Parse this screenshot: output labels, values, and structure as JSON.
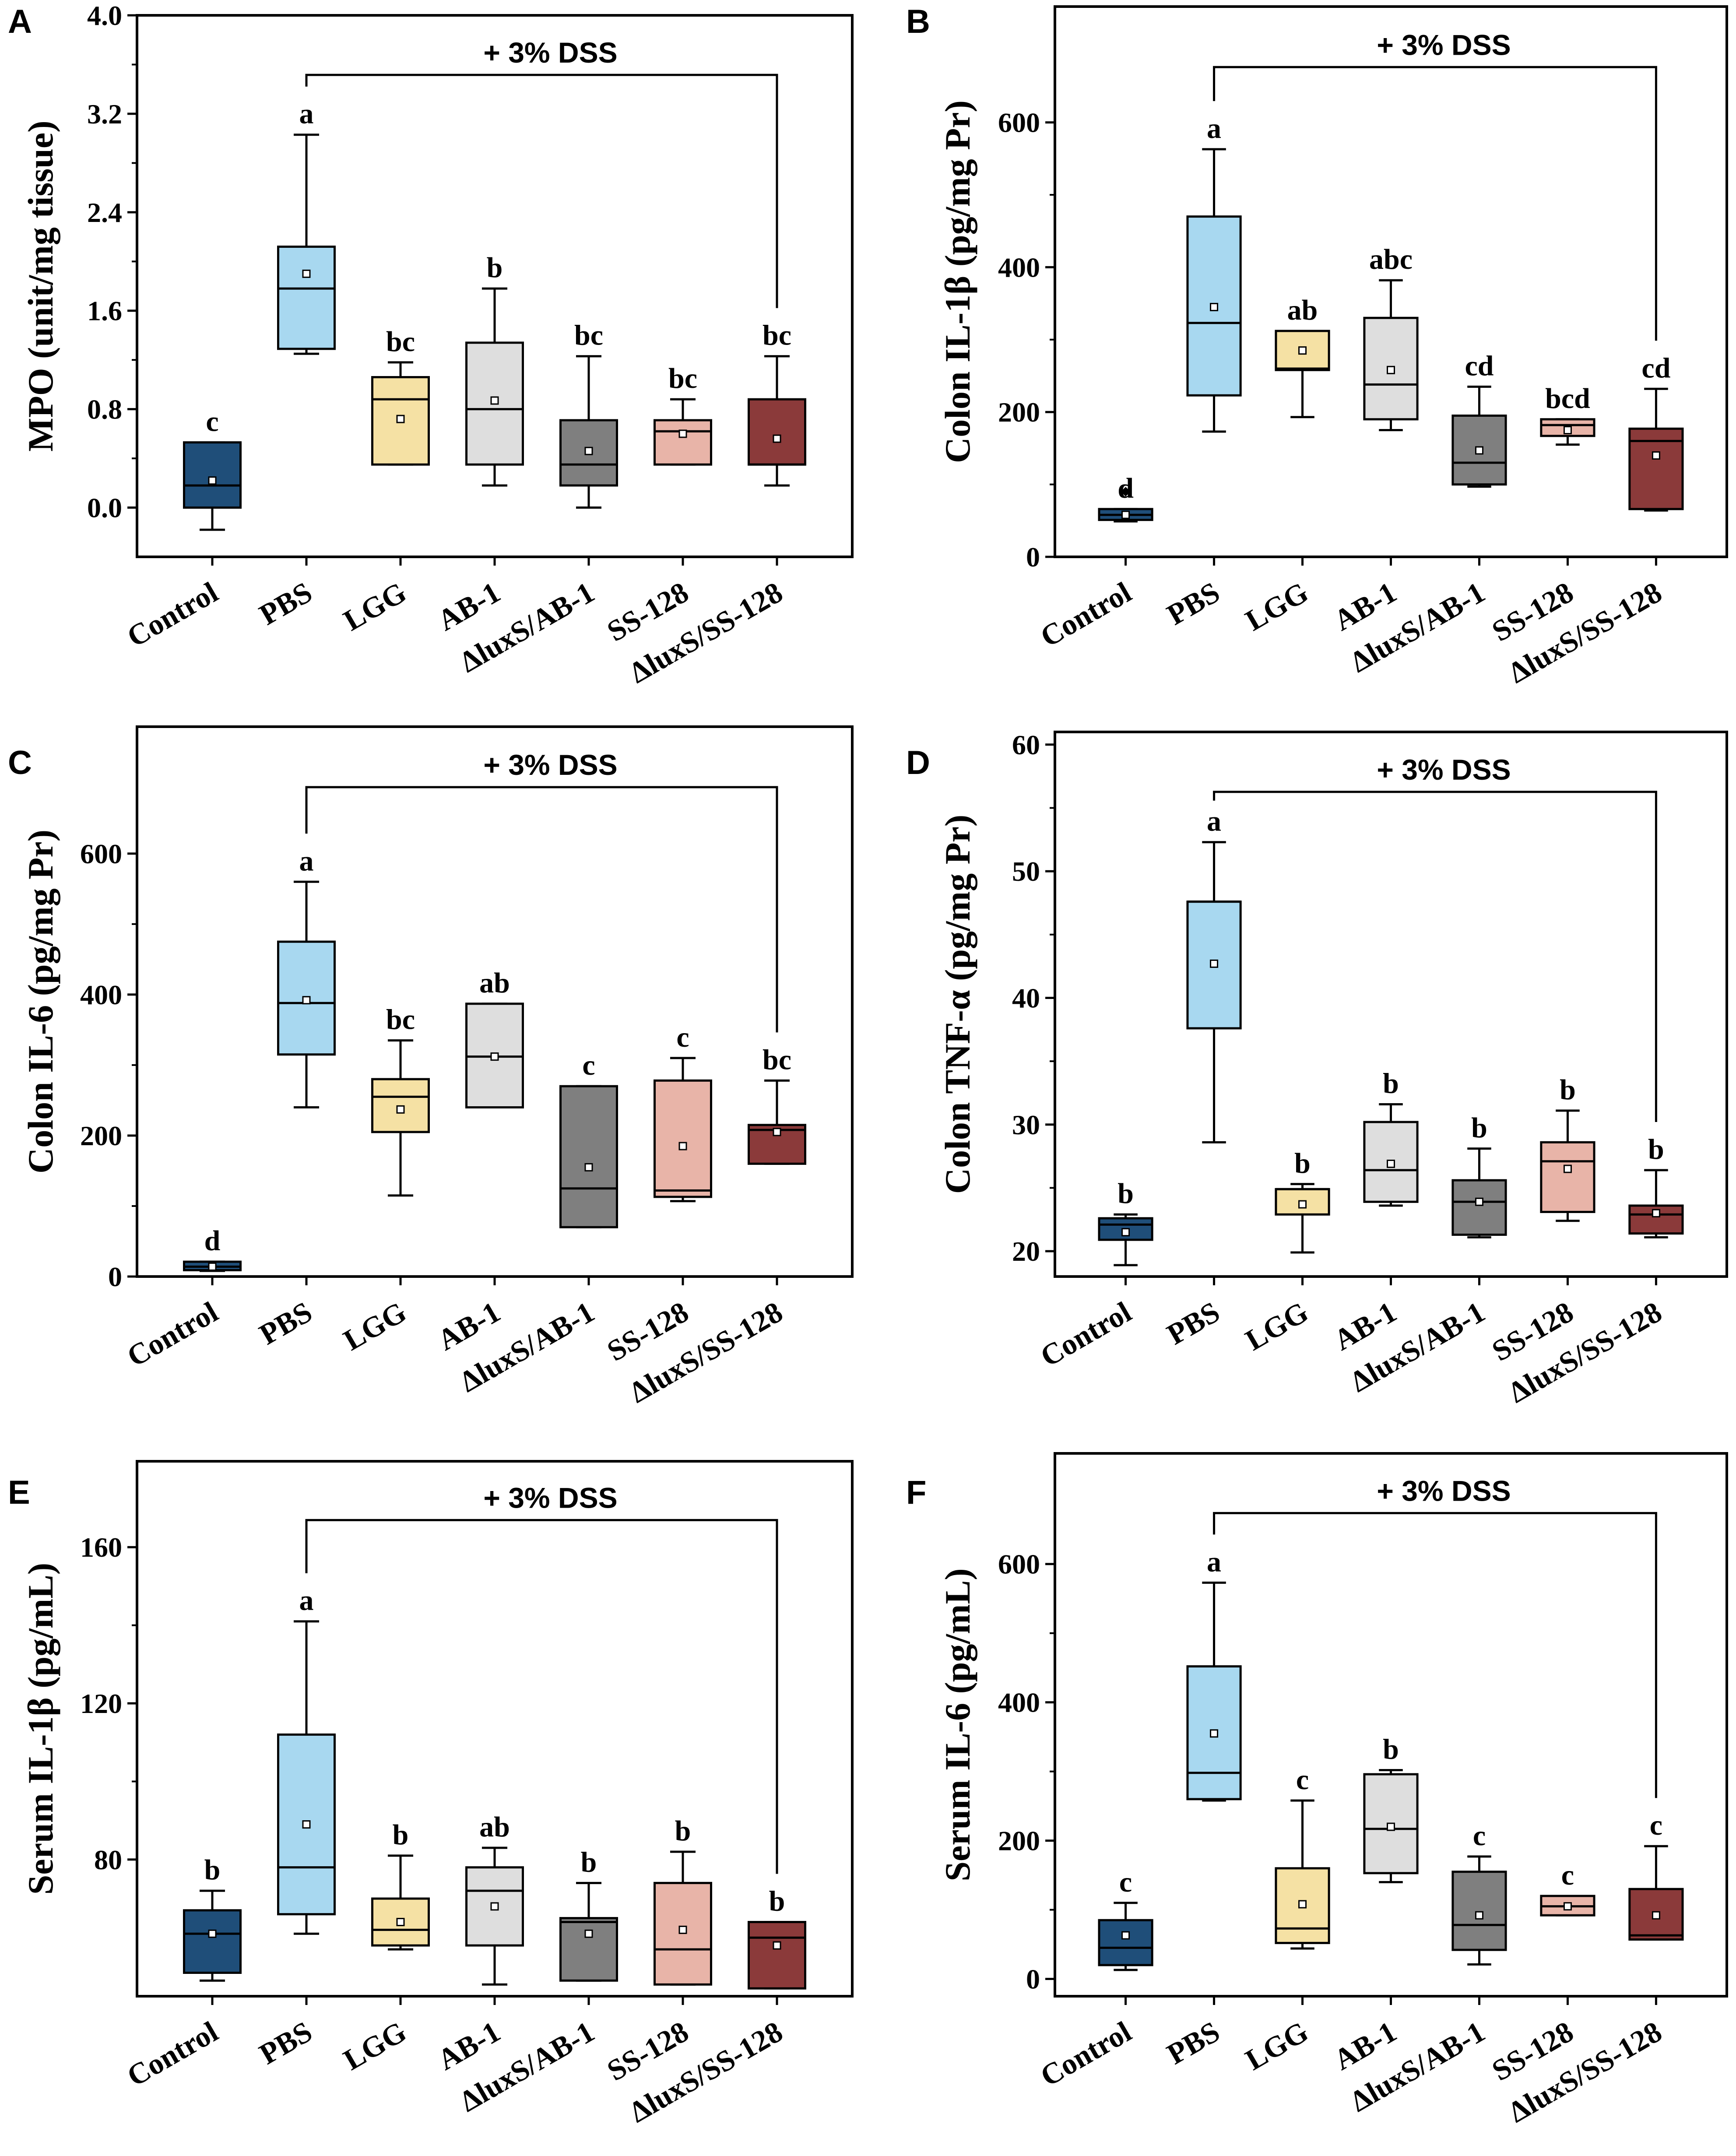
{
  "figure": {
    "categories": [
      "Control",
      "PBS",
      "LGG",
      "AB-1",
      "ΔluxS/AB-1",
      "SS-128",
      "ΔluxS/SS-128"
    ],
    "colors": [
      "#1f4e79",
      "#a8d8f0",
      "#f5e1a4",
      "#dedede",
      "#7f7f7f",
      "#e8b4a8",
      "#8b3a3a"
    ],
    "dss_label": "+ 3% DSS"
  },
  "chart_data": [
    {
      "id": "A",
      "type": "box",
      "letter": "A",
      "ylabel": "MPO (unit/mg tissue)",
      "ylim": [
        -0.4,
        4.0
      ],
      "ticks": [
        0.0,
        0.8,
        1.6,
        2.4,
        3.2,
        4.0
      ],
      "tick_labels": [
        "0.0",
        "0.8",
        "1.6",
        "2.4",
        "3.2",
        "4.0"
      ],
      "boxes": [
        {
          "whisker_low": -0.18,
          "q1": 0.0,
          "median": 0.18,
          "q3": 0.53,
          "whisker_high": 0.53,
          "mean": 0.22,
          "sig": "c"
        },
        {
          "whisker_low": 1.25,
          "q1": 1.29,
          "median": 1.78,
          "q3": 2.12,
          "whisker_high": 3.03,
          "mean": 1.9,
          "sig": "a"
        },
        {
          "whisker_low": 0.35,
          "q1": 0.35,
          "median": 0.88,
          "q3": 1.06,
          "whisker_high": 1.18,
          "mean": 0.72,
          "sig": "bc"
        },
        {
          "whisker_low": 0.18,
          "q1": 0.35,
          "median": 0.8,
          "q3": 1.34,
          "whisker_high": 1.78,
          "mean": 0.87,
          "sig": "b"
        },
        {
          "whisker_low": 0.0,
          "q1": 0.18,
          "median": 0.35,
          "q3": 0.71,
          "whisker_high": 1.23,
          "mean": 0.46,
          "sig": "bc"
        },
        {
          "whisker_low": 0.35,
          "q1": 0.35,
          "median": 0.62,
          "q3": 0.71,
          "whisker_high": 0.88,
          "mean": 0.6,
          "sig": "bc"
        },
        {
          "whisker_low": 0.18,
          "q1": 0.35,
          "median": 0.35,
          "q3": 0.88,
          "whisker_high": 1.23,
          "mean": 0.56,
          "sig": "bc"
        }
      ],
      "outliers": []
    },
    {
      "id": "B",
      "type": "box",
      "letter": "B",
      "ylabel": "Colon IL-1β (pg/mg Pr)",
      "ylim": [
        0,
        760
      ],
      "ticks": [
        0,
        200,
        400,
        600
      ],
      "tick_labels": [
        "0",
        "200",
        "400",
        "600"
      ],
      "boxes": [
        {
          "whisker_low": 49,
          "q1": 51,
          "median": 58,
          "q3": 66,
          "whisker_high": 66,
          "mean": 58,
          "sig": "d"
        },
        {
          "whisker_low": 173,
          "q1": 223,
          "median": 323,
          "q3": 470,
          "whisker_high": 563,
          "mean": 345,
          "sig": "a"
        },
        {
          "whisker_low": 193,
          "q1": 258,
          "median": 260,
          "q3": 312,
          "whisker_high": 312,
          "mean": 285,
          "sig": "ab"
        },
        {
          "whisker_low": 175,
          "q1": 190,
          "median": 238,
          "q3": 330,
          "whisker_high": 382,
          "mean": 258,
          "sig": "abc"
        },
        {
          "whisker_low": 97,
          "q1": 100,
          "median": 130,
          "q3": 195,
          "whisker_high": 235,
          "mean": 147,
          "sig": "cd"
        },
        {
          "whisker_low": 155,
          "q1": 167,
          "median": 182,
          "q3": 190,
          "whisker_high": 190,
          "mean": 175,
          "sig": "bcd"
        },
        {
          "whisker_low": 64,
          "q1": 66,
          "median": 160,
          "q3": 177,
          "whisker_high": 232,
          "mean": 140,
          "sig": "cd"
        }
      ],
      "outliers": [
        {
          "group": 0,
          "value": 90
        }
      ]
    },
    {
      "id": "C",
      "type": "box",
      "letter": "C",
      "ylabel": "Colon IL-6 (pg/mg Pr)",
      "ylim": [
        0,
        780
      ],
      "ticks": [
        0,
        200,
        400,
        600
      ],
      "tick_labels": [
        "0",
        "200",
        "400",
        "600"
      ],
      "boxes": [
        {
          "whisker_low": 8,
          "q1": 9,
          "median": 14,
          "q3": 21,
          "whisker_high": 21,
          "mean": 14,
          "sig": "d"
        },
        {
          "whisker_low": 240,
          "q1": 315,
          "median": 388,
          "q3": 475,
          "whisker_high": 560,
          "mean": 392,
          "sig": "a"
        },
        {
          "whisker_low": 115,
          "q1": 205,
          "median": 255,
          "q3": 280,
          "whisker_high": 335,
          "mean": 237,
          "sig": "bc"
        },
        {
          "whisker_low": 240,
          "q1": 240,
          "median": 312,
          "q3": 387,
          "whisker_high": 387,
          "mean": 312,
          "sig": "ab"
        },
        {
          "whisker_low": 70,
          "q1": 70,
          "median": 125,
          "q3": 270,
          "whisker_high": 270,
          "mean": 155,
          "sig": "c"
        },
        {
          "whisker_low": 107,
          "q1": 113,
          "median": 122,
          "q3": 278,
          "whisker_high": 310,
          "mean": 185,
          "sig": "c"
        },
        {
          "whisker_low": 160,
          "q1": 160,
          "median": 208,
          "q3": 215,
          "whisker_high": 278,
          "mean": 205,
          "sig": "bc"
        }
      ],
      "outliers": []
    },
    {
      "id": "D",
      "type": "box",
      "letter": "D",
      "ylabel": "Colon TNF-α (pg/mg Pr)",
      "ylim": [
        18,
        61
      ],
      "ticks": [
        20,
        30,
        40,
        50,
        60
      ],
      "tick_labels": [
        "20",
        "30",
        "40",
        "50",
        "60"
      ],
      "boxes": [
        {
          "whisker_low": 18.9,
          "q1": 20.9,
          "median": 22.1,
          "q3": 22.6,
          "whisker_high": 22.9,
          "mean": 21.5,
          "sig": "b"
        },
        {
          "whisker_low": 28.6,
          "q1": 37.6,
          "median": 47.6,
          "q3": 47.6,
          "whisker_high": 52.3,
          "mean": 42.7,
          "sig": "a"
        },
        {
          "whisker_low": 19.9,
          "q1": 22.9,
          "median": 24.9,
          "q3": 24.9,
          "whisker_high": 25.3,
          "mean": 23.7,
          "sig": "b"
        },
        {
          "whisker_low": 23.6,
          "q1": 23.9,
          "median": 26.4,
          "q3": 30.2,
          "whisker_high": 31.6,
          "mean": 26.9,
          "sig": "b"
        },
        {
          "whisker_low": 21.1,
          "q1": 21.3,
          "median": 23.9,
          "q3": 25.6,
          "whisker_high": 28.1,
          "mean": 23.9,
          "sig": "b"
        },
        {
          "whisker_low": 22.4,
          "q1": 23.1,
          "median": 27.1,
          "q3": 28.6,
          "whisker_high": 31.1,
          "mean": 26.5,
          "sig": "b"
        },
        {
          "whisker_low": 21.1,
          "q1": 21.4,
          "median": 22.9,
          "q3": 23.6,
          "whisker_high": 26.4,
          "mean": 23.0,
          "sig": "b"
        }
      ],
      "outliers": []
    },
    {
      "id": "E",
      "type": "box",
      "letter": "E",
      "ylabel": "Serum IL-1β (pg/mL)",
      "ylim": [
        45,
        182
      ],
      "ticks": [
        80,
        120,
        160
      ],
      "tick_labels": [
        "80",
        "120",
        "160"
      ],
      "boxes": [
        {
          "whisker_low": 49,
          "q1": 51,
          "median": 61,
          "q3": 67,
          "whisker_high": 72,
          "mean": 61,
          "sig": "b"
        },
        {
          "whisker_low": 61,
          "q1": 66,
          "median": 78,
          "q3": 112,
          "whisker_high": 141,
          "mean": 89,
          "sig": "a"
        },
        {
          "whisker_low": 57,
          "q1": 58,
          "median": 62,
          "q3": 70,
          "whisker_high": 81,
          "mean": 64,
          "sig": "b"
        },
        {
          "whisker_low": 48,
          "q1": 58,
          "median": 72,
          "q3": 78,
          "whisker_high": 83,
          "mean": 68,
          "sig": "ab"
        },
        {
          "whisker_low": 49,
          "q1": 49,
          "median": 64,
          "q3": 65,
          "whisker_high": 74,
          "mean": 61,
          "sig": "b"
        },
        {
          "whisker_low": 48,
          "q1": 48,
          "median": 57,
          "q3": 74,
          "whisker_high": 82,
          "mean": 62,
          "sig": "b"
        },
        {
          "whisker_low": 47,
          "q1": 47,
          "median": 60,
          "q3": 64,
          "whisker_high": 64,
          "mean": 58,
          "sig": "b"
        }
      ],
      "outliers": []
    },
    {
      "id": "F",
      "type": "box",
      "letter": "F",
      "ylabel": "Serum IL-6 (pg/mL)",
      "ylim": [
        -25,
        760
      ],
      "ticks": [
        0,
        200,
        400,
        600
      ],
      "tick_labels": [
        "0",
        "200",
        "400",
        "600"
      ],
      "boxes": [
        {
          "whisker_low": 13,
          "q1": 20,
          "median": 45,
          "q3": 85,
          "whisker_high": 110,
          "mean": 63,
          "sig": "c"
        },
        {
          "whisker_low": 258,
          "q1": 260,
          "median": 298,
          "q3": 452,
          "whisker_high": 573,
          "mean": 355,
          "sig": "a"
        },
        {
          "whisker_low": 44,
          "q1": 52,
          "median": 73,
          "q3": 160,
          "whisker_high": 258,
          "mean": 108,
          "sig": "c"
        },
        {
          "whisker_low": 140,
          "q1": 153,
          "median": 217,
          "q3": 296,
          "whisker_high": 302,
          "mean": 220,
          "sig": "b"
        },
        {
          "whisker_low": 21,
          "q1": 42,
          "median": 78,
          "q3": 155,
          "whisker_high": 177,
          "mean": 92,
          "sig": "c"
        },
        {
          "whisker_low": 92,
          "q1": 92,
          "median": 105,
          "q3": 120,
          "whisker_high": 120,
          "mean": 105,
          "sig": "c"
        },
        {
          "whisker_low": 57,
          "q1": 57,
          "median": 63,
          "q3": 130,
          "whisker_high": 192,
          "mean": 92,
          "sig": "c"
        }
      ],
      "outliers": []
    }
  ]
}
